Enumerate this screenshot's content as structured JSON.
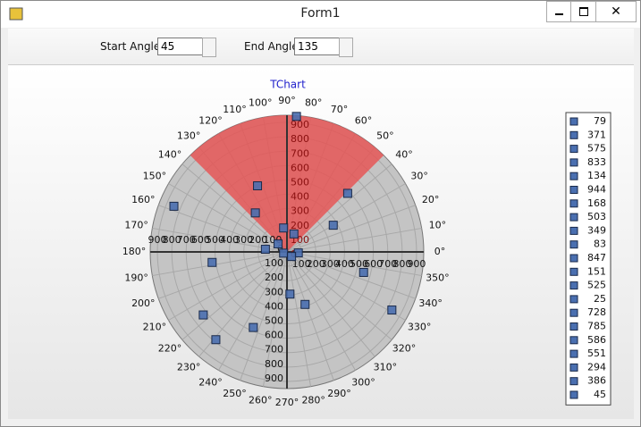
{
  "window": {
    "title": "Form1"
  },
  "controls": {
    "start_label": "Start Angle:",
    "end_label": "End Angle:"
  },
  "chart_data": {
    "type": "polar",
    "title": "TChart",
    "start_angle": 45,
    "end_angle": 135,
    "sector_color": "#e85050",
    "background": "#c4c4c4",
    "rlim": [
      0,
      950
    ],
    "rticks": [
      0,
      100,
      200,
      300,
      400,
      500,
      600,
      700,
      800,
      900
    ],
    "angle_ticks": [
      {
        "value": 0,
        "label": "0°"
      },
      {
        "value": 10,
        "label": "10°"
      },
      {
        "value": 20,
        "label": "20°"
      },
      {
        "value": 30,
        "label": "30°"
      },
      {
        "value": 40,
        "label": "40°"
      },
      {
        "value": 50,
        "label": "50°"
      },
      {
        "value": 60,
        "label": "60°"
      },
      {
        "value": 70,
        "label": "70°"
      },
      {
        "value": 80,
        "label": "80°"
      },
      {
        "value": 90,
        "label": "90°"
      },
      {
        "value": 100,
        "label": "100°"
      },
      {
        "value": 110,
        "label": "110°"
      },
      {
        "value": 120,
        "label": "120°"
      },
      {
        "value": 130,
        "label": "130°"
      },
      {
        "value": 140,
        "label": "140°"
      },
      {
        "value": 150,
        "label": "150°"
      },
      {
        "value": 160,
        "label": "160°"
      },
      {
        "value": 170,
        "label": "170°"
      },
      {
        "value": 180,
        "label": "180°"
      },
      {
        "value": 190,
        "label": "190°"
      },
      {
        "value": 200,
        "label": "200°"
      },
      {
        "value": 210,
        "label": "210°"
      },
      {
        "value": 220,
        "label": "220°"
      },
      {
        "value": 230,
        "label": "230°"
      },
      {
        "value": 240,
        "label": "240°"
      },
      {
        "value": 250,
        "label": "250°"
      },
      {
        "value": 260,
        "label": "260°"
      },
      {
        "value": 270,
        "label": "270°"
      },
      {
        "value": 280,
        "label": "280°"
      },
      {
        "value": 290,
        "label": "290°"
      },
      {
        "value": 300,
        "label": "300°"
      },
      {
        "value": 310,
        "label": "310°"
      },
      {
        "value": 320,
        "label": "320°"
      },
      {
        "value": 330,
        "label": "330°"
      },
      {
        "value": 340,
        "label": "340°"
      },
      {
        "value": 350,
        "label": "350°"
      }
    ],
    "grid": true,
    "series": [
      {
        "color": "#4a6fb0",
        "values": [
          79,
          371,
          575,
          833,
          134,
          944,
          168,
          503,
          349,
          83,
          847,
          151,
          525,
          25,
          728,
          785,
          586,
          551,
          294,
          386,
          45
        ],
        "angles": [
          355,
          30,
          246,
          331,
          69,
          86,
          98,
          114,
          129,
          138,
          158,
          173,
          188,
          200,
          217,
          231,
          44,
          345,
          274,
          289,
          315
        ]
      }
    ]
  }
}
